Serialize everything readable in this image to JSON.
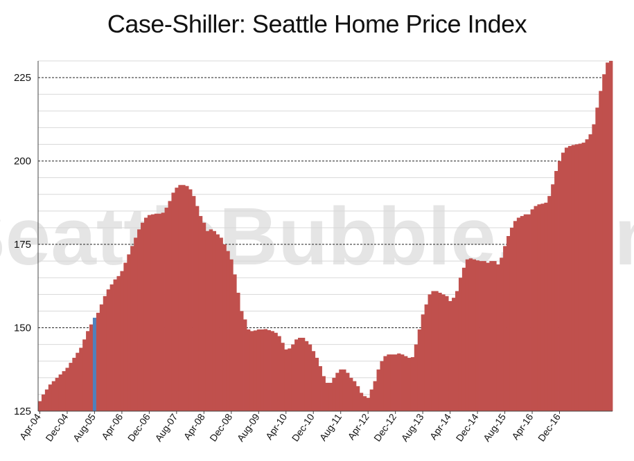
{
  "chart_data": {
    "type": "bar",
    "title": "Case-Shiller: Seattle Home Price Index",
    "xlabel": "",
    "ylabel": "",
    "ylim": [
      125,
      230
    ],
    "yticks": [
      125,
      150,
      175,
      200,
      225
    ],
    "grid": true,
    "watermark": "SeattleBubble.com",
    "start_month": "2004-04",
    "x_tick_labels": [
      "Apr-04",
      "Dec-04",
      "Aug-05",
      "Apr-06",
      "Dec-06",
      "Aug-07",
      "Apr-08",
      "Dec-08",
      "Aug-09",
      "Apr-10",
      "Dec-10",
      "Aug-11",
      "Apr-12",
      "Dec-12",
      "Aug-13",
      "Apr-14",
      "Dec-14",
      "Aug-15",
      "Apr-16",
      "Dec-16"
    ],
    "bar_color": "#c0504d",
    "highlight_color": "#4f81bd",
    "highlight_category": "Aug-05",
    "values": [
      128.0,
      130.0,
      131.5,
      133.0,
      134.0,
      135.0,
      136.0,
      137.0,
      138.0,
      139.5,
      141.0,
      142.5,
      144.0,
      146.5,
      149.0,
      151.0,
      153.0,
      154.5,
      157.0,
      159.5,
      161.5,
      163.0,
      164.5,
      165.5,
      167.0,
      169.5,
      172.0,
      174.5,
      177.0,
      179.5,
      181.5,
      183.0,
      183.8,
      184.0,
      184.2,
      184.2,
      184.5,
      186.0,
      188.0,
      190.5,
      192.0,
      192.8,
      192.8,
      192.5,
      191.5,
      189.5,
      186.5,
      183.5,
      181.5,
      179.0,
      179.5,
      179.0,
      178.0,
      177.0,
      175.0,
      173.0,
      170.5,
      166.0,
      160.5,
      155.0,
      152.5,
      149.5,
      149.0,
      149.2,
      149.5,
      149.5,
      149.6,
      149.3,
      149.0,
      148.5,
      147.5,
      145.5,
      143.5,
      143.8,
      145.0,
      146.5,
      147.0,
      147.0,
      146.0,
      145.0,
      143.0,
      141.0,
      138.5,
      135.5,
      133.5,
      133.5,
      135.0,
      136.5,
      137.5,
      137.5,
      136.5,
      135.0,
      134.0,
      132.5,
      130.5,
      129.5,
      129.0,
      131.5,
      134.0,
      137.5,
      140.0,
      141.5,
      142.0,
      142.0,
      142.0,
      142.3,
      142.0,
      141.5,
      141.0,
      141.2,
      145.0,
      149.5,
      154.0,
      157.0,
      160.0,
      161.0,
      161.0,
      160.5,
      160.0,
      159.5,
      158.0,
      159.0,
      161.0,
      165.0,
      168.0,
      170.5,
      170.8,
      170.5,
      170.2,
      170.0,
      170.0,
      169.5,
      170.0,
      170.0,
      169.0,
      171.0,
      174.5,
      177.5,
      180.0,
      182.0,
      183.0,
      183.5,
      184.0,
      184.0,
      185.5,
      186.5,
      187.0,
      187.2,
      187.5,
      189.5,
      193.0,
      197.0,
      200.0,
      202.5,
      204.0,
      204.5,
      204.8,
      205.0,
      205.2,
      205.5,
      206.5,
      208.0,
      211.0,
      216.0,
      221.0,
      226.0,
      229.5,
      232.0
    ]
  }
}
